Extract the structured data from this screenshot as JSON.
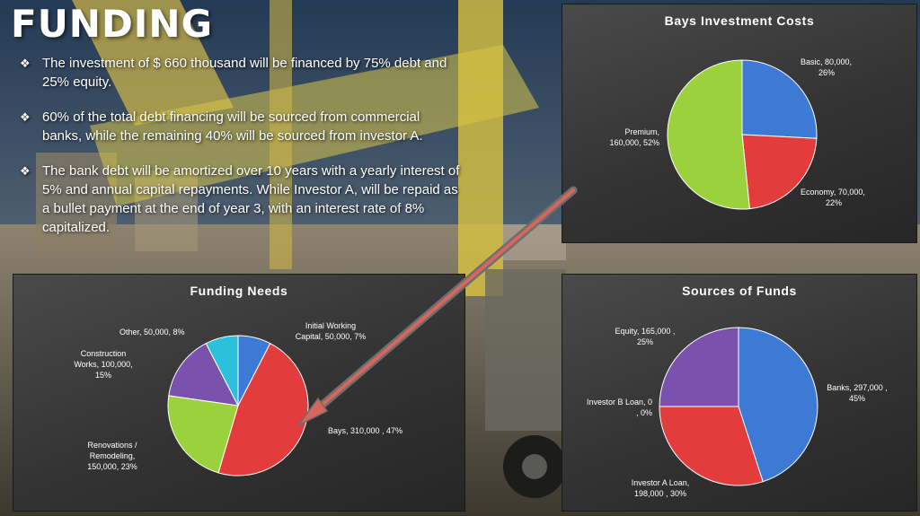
{
  "slide": {
    "title": "FUNDING",
    "bullets": [
      {
        "lines": [
          "The investment of $ 660 thousand will be financed by 75% debt and",
          "25% equity."
        ]
      },
      {
        "lines": [
          "60% of the total debt financing will be sourced from commercial",
          "banks, while the remaining 40% will be sourced from investor A."
        ]
      },
      {
        "lines": [
          "The bank debt will be amortized over 10 years with a yearly interest of",
          "5% and annual capital repayments. While Investor A, will be repaid as",
          "a bullet payment at the end of year 3, with an interest rate of 8%",
          "capitalized."
        ]
      }
    ],
    "bullet_icon": "diamond-bullet-icon"
  },
  "colors": {
    "blue": "#3d7ad6",
    "red": "#e23c3c",
    "green": "#9bd13c",
    "purple": "#7a52ad",
    "cyan": "#2cc0dc",
    "arrow": "#d8665c"
  },
  "chart_data": [
    {
      "type": "pie",
      "title": "Bays Investment Costs",
      "slices": [
        {
          "name": "Basic",
          "value": 80000,
          "percent": 26,
          "color": "blue",
          "label_lines": [
            "Basic, 80,000,",
            "26%"
          ]
        },
        {
          "name": "Economy",
          "value": 70000,
          "percent": 22,
          "color": "red",
          "label_lines": [
            "Economy, 70,000,",
            "22%"
          ]
        },
        {
          "name": "Premium",
          "value": 160000,
          "percent": 52,
          "color": "green",
          "label_lines": [
            "Premium,",
            "160,000, 52%"
          ]
        }
      ]
    },
    {
      "type": "pie",
      "title": "Funding Needs",
      "slices": [
        {
          "name": "Initial Working Capital",
          "value": 50000,
          "percent": 7,
          "color": "blue",
          "label_lines": [
            "Initial Working",
            "Capital, 50,000, 7%"
          ]
        },
        {
          "name": "Bays",
          "value": 310000,
          "percent": 47,
          "color": "red",
          "label_lines": [
            "Bays, 310,000 , 47%"
          ]
        },
        {
          "name": "Renovations / Remodeling",
          "value": 150000,
          "percent": 23,
          "color": "green",
          "label_lines": [
            "Renovations /",
            "Remodeling,",
            "150,000, 23%"
          ]
        },
        {
          "name": "Construction Works",
          "value": 100000,
          "percent": 15,
          "color": "purple",
          "label_lines": [
            "Construction",
            "Works, 100,000,",
            "15%"
          ]
        },
        {
          "name": "Other",
          "value": 50000,
          "percent": 8,
          "color": "cyan",
          "label_lines": [
            "Other, 50,000, 8%"
          ]
        }
      ]
    },
    {
      "type": "pie",
      "title": "Sources of Funds",
      "slices": [
        {
          "name": "Banks",
          "value": 297000,
          "percent": 45,
          "color": "blue",
          "label_lines": [
            "Banks, 297,000 ,",
            "45%"
          ]
        },
        {
          "name": "Investor A Loan",
          "value": 198000,
          "percent": 30,
          "color": "red",
          "label_lines": [
            "Investor A Loan,",
            "198,000 , 30%"
          ]
        },
        {
          "name": "Investor B Loan",
          "value": 0,
          "percent": 0,
          "color": "green",
          "label_lines": [
            "Investor B Loan, 0",
            ", 0%"
          ]
        },
        {
          "name": "Equity",
          "value": 165000,
          "percent": 25,
          "color": "purple",
          "label_lines": [
            "Equity, 165,000 ,",
            "25%"
          ]
        }
      ]
    }
  ]
}
